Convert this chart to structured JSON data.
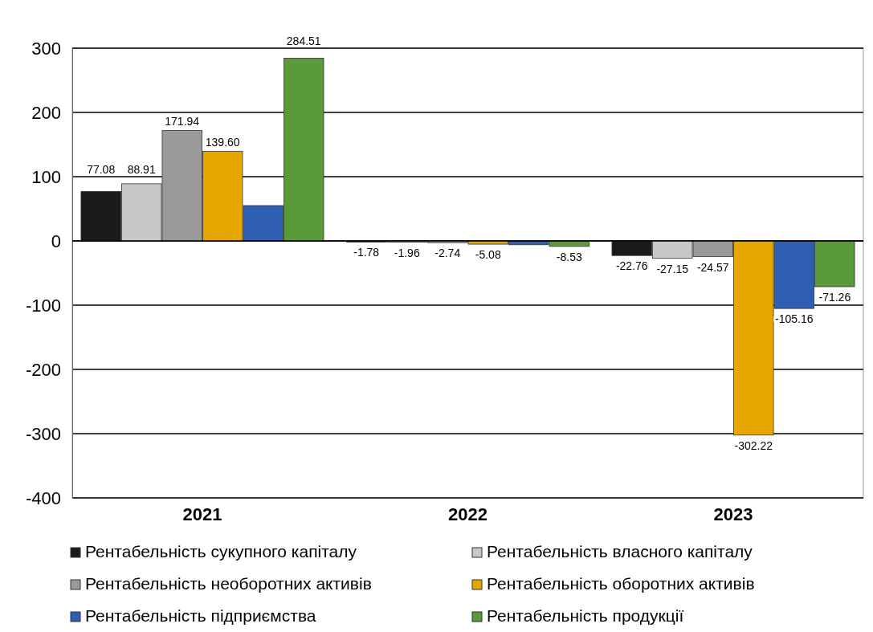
{
  "chart_data": {
    "type": "bar",
    "categories": [
      "2021",
      "2022",
      "2023"
    ],
    "series": [
      {
        "name": "Рентабельність сукупного капіталу",
        "color": "#1a1a1a",
        "values": [
          77.08,
          -1.78,
          -22.76
        ],
        "value_labels": [
          "77.08",
          "-1.78",
          "-22.76"
        ]
      },
      {
        "name": "Рентабельність власного капіталу",
        "color": "#c8c8c8",
        "values": [
          88.91,
          -1.96,
          -27.15
        ],
        "value_labels": [
          "88.91",
          "-1.96",
          "-27.15"
        ]
      },
      {
        "name": "Рентабельність необоротних активів",
        "color": "#9a9a9a",
        "values": [
          171.94,
          -2.74,
          -24.57
        ],
        "value_labels": [
          "171.94",
          "-2.74",
          "-24.57"
        ]
      },
      {
        "name": "Рентабельність оборотних активів",
        "color": "#e6a800",
        "values": [
          139.6,
          -5.08,
          -302.22
        ],
        "value_labels": [
          "139.60",
          "-5.08",
          "-302.22"
        ]
      },
      {
        "name": "Рентабельність підприємства",
        "color": "#2e5fb5",
        "values": [
          55,
          -6,
          -105.16
        ],
        "value_labels": [
          null,
          null,
          "-105.16"
        ]
      },
      {
        "name": "Рентабельність продукції",
        "color": "#5b9a3a",
        "values": [
          284.51,
          -8.53,
          -71.26
        ],
        "value_labels": [
          "284.51",
          "-8.53",
          "-71.26"
        ]
      }
    ],
    "ylim": [
      -400,
      300
    ],
    "yticks": [
      -400,
      -300,
      -200,
      -100,
      0,
      100,
      200,
      300
    ],
    "grid": "y",
    "legend": "bottom"
  }
}
